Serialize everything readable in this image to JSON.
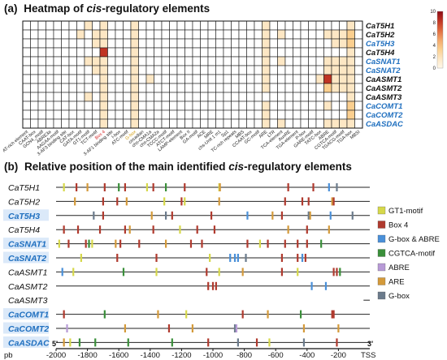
{
  "panel_a": {
    "label": "(a)",
    "title_pre": "Heatmap of ",
    "title_em": "cis",
    "title_post": "-regulatory elements",
    "genes": [
      "CaT5H1",
      "CaT5H2",
      "CaT5H3",
      "CaT5H4",
      "CaSNAT1",
      "CaSNAT2",
      "CaASMT1",
      "CaASMT2",
      "CaASMT3",
      "CaCOMT1",
      "CaCOMT2",
      "CaASDAC"
    ],
    "gene_colors": [
      "#111111",
      "#111111",
      "#1f6fbf",
      "#111111",
      "#1f6fbf",
      "#1f6fbf",
      "#111111",
      "#111111",
      "#111111",
      "#1f6fbf",
      "#1f6fbf",
      "#1f6fbf"
    ],
    "elements": [
      "AT-rich element",
      "CAAT-box",
      "GCN4_motif",
      "ABRE3a",
      "AAGAA-motif",
      "3-AF3 binding site",
      "CAT-box",
      "GATA-motif",
      "GT1-motif",
      "TCT-motif",
      "Box 4",
      "3-AF1 binding site",
      "I-box",
      "ATC-motif",
      "G-box",
      "circadian",
      "chs-CMA1a",
      "chs-CMA2a",
      "TCCC-motif",
      "ATCT-motif",
      "LAMP-element",
      "Box II",
      "GA-motif",
      "ACE",
      "MRE",
      "chs-Unit 1 m1",
      "Sp1",
      "TC-rich repeats",
      "MBS",
      "CCAAT-box",
      "GC-motif",
      "ARE",
      "LTR",
      "TCA-element",
      "AuxRE",
      "TGA-element",
      "P-box",
      "GARE-motif",
      "TATC-box",
      "ABRE",
      "CGTCA-motif",
      "TGACG-motif",
      "TGA-box",
      "MBSI"
    ],
    "highlight_elements": {
      "Box 4": "#d62728",
      "G-box": "#d4a017"
    },
    "colorbar": {
      "ticks": [
        0,
        2,
        4,
        6,
        8,
        10
      ],
      "colors": [
        "#fff7ea",
        "#fde7c4",
        "#fbcf8f",
        "#f3a66a",
        "#e06a3f",
        "#c03423",
        "#8b0a14"
      ]
    },
    "matrix": [
      [
        0,
        0,
        0,
        0,
        0,
        0,
        0,
        0,
        1,
        0,
        1,
        0,
        0,
        0,
        1,
        0,
        0,
        0,
        0,
        0,
        0,
        0,
        0,
        0,
        0,
        0,
        0,
        0,
        0,
        0,
        0,
        1,
        0,
        0,
        0,
        0,
        0,
        0,
        0,
        0,
        0,
        0,
        2,
        0
      ],
      [
        0,
        0,
        0,
        0,
        0,
        0,
        0,
        1,
        0,
        1,
        2,
        0,
        0,
        0,
        1,
        0,
        0,
        0,
        0,
        0,
        0,
        0,
        0,
        0,
        0,
        0,
        0,
        0,
        0,
        0,
        0,
        1,
        0,
        1,
        0,
        0,
        0,
        0,
        0,
        1,
        1,
        1,
        3,
        0
      ],
      [
        0,
        0,
        0,
        0,
        0,
        0,
        0,
        0,
        0,
        1,
        2,
        0,
        0,
        0,
        1,
        0,
        0,
        0,
        0,
        0,
        0,
        0,
        0,
        0,
        0,
        0,
        0,
        0,
        0,
        0,
        0,
        1,
        0,
        0,
        0,
        0,
        0,
        0,
        0,
        0,
        2,
        2,
        4,
        0
      ],
      [
        0,
        0,
        0,
        0,
        0,
        0,
        0,
        0,
        0,
        0,
        9,
        0,
        0,
        0,
        2,
        0,
        0,
        0,
        0,
        0,
        0,
        0,
        0,
        0,
        0,
        0,
        0,
        0,
        0,
        0,
        0,
        1,
        0,
        0,
        0,
        0,
        0,
        0,
        0,
        0,
        0,
        0,
        1,
        0
      ],
      [
        0,
        0,
        0,
        0,
        0,
        0,
        0,
        0,
        1,
        1,
        2,
        0,
        0,
        0,
        1,
        0,
        0,
        0,
        0,
        0,
        0,
        0,
        0,
        0,
        0,
        0,
        0,
        0,
        0,
        0,
        0,
        1,
        0,
        1,
        0,
        0,
        0,
        0,
        0,
        1,
        2,
        2,
        1,
        0
      ],
      [
        0,
        0,
        0,
        0,
        0,
        0,
        0,
        0,
        0,
        1,
        2,
        0,
        0,
        0,
        2,
        0,
        0,
        0,
        0,
        0,
        0,
        0,
        0,
        0,
        0,
        0,
        0,
        0,
        0,
        0,
        0,
        1,
        0,
        0,
        0,
        0,
        0,
        0,
        0,
        1,
        1,
        1,
        1,
        0
      ],
      [
        0,
        0,
        0,
        0,
        0,
        0,
        0,
        0,
        0,
        0,
        1,
        0,
        0,
        0,
        1,
        0,
        1,
        0,
        0,
        0,
        0,
        0,
        0,
        0,
        0,
        0,
        0,
        0,
        0,
        0,
        0,
        1,
        0,
        0,
        0,
        0,
        0,
        0,
        1,
        9,
        2,
        2,
        2,
        0
      ],
      [
        0,
        0,
        0,
        0,
        0,
        0,
        0,
        0,
        0,
        0,
        1,
        0,
        0,
        0,
        2,
        0,
        0,
        0,
        0,
        0,
        0,
        0,
        0,
        0,
        0,
        0,
        0,
        0,
        0,
        0,
        0,
        1,
        0,
        0,
        0,
        0,
        0,
        0,
        0,
        3,
        1,
        1,
        1,
        0
      ],
      [
        0,
        0,
        0,
        0,
        0,
        0,
        0,
        0,
        1,
        0,
        1,
        0,
        0,
        0,
        1,
        0,
        0,
        0,
        0,
        0,
        0,
        0,
        0,
        0,
        0,
        0,
        0,
        0,
        0,
        0,
        0,
        0,
        0,
        0,
        0,
        0,
        0,
        0,
        0,
        0,
        0,
        0,
        1,
        0
      ],
      [
        0,
        0,
        0,
        0,
        0,
        0,
        0,
        0,
        0,
        0,
        2,
        0,
        0,
        0,
        1,
        0,
        0,
        0,
        0,
        0,
        0,
        0,
        0,
        0,
        0,
        0,
        0,
        0,
        0,
        0,
        0,
        1,
        0,
        0,
        0,
        0,
        0,
        0,
        0,
        1,
        0,
        0,
        4,
        0
      ],
      [
        0,
        0,
        0,
        0,
        0,
        0,
        0,
        0,
        0,
        0,
        2,
        0,
        0,
        0,
        1,
        0,
        0,
        0,
        0,
        0,
        0,
        0,
        0,
        0,
        0,
        0,
        0,
        0,
        0,
        0,
        0,
        1,
        0,
        0,
        0,
        0,
        0,
        0,
        0,
        0,
        0,
        0,
        3,
        0
      ],
      [
        0,
        0,
        0,
        0,
        0,
        0,
        0,
        0,
        0,
        0,
        1,
        0,
        0,
        0,
        1,
        0,
        0,
        0,
        0,
        0,
        0,
        0,
        0,
        0,
        0,
        0,
        0,
        0,
        0,
        0,
        0,
        1,
        0,
        1,
        0,
        0,
        0,
        0,
        0,
        1,
        1,
        1,
        2,
        0
      ]
    ]
  },
  "panel_b": {
    "label": "(b)",
    "title_pre": "Relative position of the main identified ",
    "title_em": "cis",
    "title_post": "-regulatory elements",
    "genes": [
      "CaT5H1",
      "CaT5H2",
      "CaT5H3",
      "CaT5H4",
      "CaSNAT1",
      "CaSNAT2",
      "CaASMT1",
      "CaASMT2",
      "CaASMT3",
      "CaCOMT1",
      "CaCOMT2",
      "CaASDAC"
    ],
    "gene_colors": [
      "#111111",
      "#111111",
      "#1f6fbf",
      "#111111",
      "#1f6fbf",
      "#1f6fbf",
      "#111111",
      "#111111",
      "#111111",
      "#1f6fbf",
      "#1f6fbf",
      "#1f6fbf"
    ],
    "gene_bg": [
      "#ffffff",
      "#ffffff",
      "#dbe9f9",
      "#ffffff",
      "#dbe9f9",
      "#dbe9f9",
      "#ffffff",
      "#ffffff",
      "#ffffff",
      "#dbe9f9",
      "#dbe9f9",
      "#dbe9f9"
    ],
    "strand_5": "5'",
    "strand_3": "3'",
    "axis_unit": "pb",
    "x_ticks": [
      -2000,
      -1800,
      -1600,
      -1400,
      -1200,
      -1000,
      -800,
      -600,
      -400,
      -200
    ],
    "tss_label": "TSS",
    "x_range": [
      -2000,
      0
    ],
    "legend": [
      {
        "name": "GT1-motif",
        "color": "#d6d84a"
      },
      {
        "name": "Box 4",
        "color": "#b03a2e"
      },
      {
        "name": "G-box & ABRE",
        "color": "#4a90d9"
      },
      {
        "name": "CGTCA-motif",
        "color": "#3a8f3a"
      },
      {
        "name": "ABRE",
        "color": "#b79ad6"
      },
      {
        "name": "ARE",
        "color": "#d49a3a"
      },
      {
        "name": "G-box",
        "color": "#6b7b8c"
      }
    ],
    "tracks": [
      {
        "length": 2000,
        "marks": [
          [
            -1950,
            0
          ],
          [
            -1870,
            1
          ],
          [
            -1800,
            5
          ],
          [
            -1690,
            1
          ],
          [
            -1600,
            3
          ],
          [
            -1560,
            1
          ],
          [
            -1420,
            0
          ],
          [
            -1380,
            1
          ],
          [
            -1300,
            3
          ],
          [
            -1180,
            1
          ],
          [
            -960,
            0
          ],
          [
            -955,
            5
          ],
          [
            -520,
            1
          ],
          [
            -360,
            1
          ],
          [
            -260,
            2
          ],
          [
            -210,
            6
          ]
        ]
      },
      {
        "length": 2000,
        "marks": [
          [
            -1880,
            5
          ],
          [
            -1700,
            1
          ],
          [
            -1610,
            1
          ],
          [
            -1550,
            5
          ],
          [
            -1310,
            0
          ],
          [
            -1200,
            1
          ],
          [
            -1180,
            0
          ],
          [
            -960,
            5
          ],
          [
            -540,
            1
          ],
          [
            -430,
            1
          ],
          [
            -390,
            1
          ],
          [
            -240,
            5
          ],
          [
            -230,
            1
          ]
        ]
      },
      {
        "length": 2000,
        "marks": [
          [
            -1760,
            6
          ],
          [
            -1700,
            1
          ],
          [
            -1390,
            5
          ],
          [
            -1300,
            6
          ],
          [
            -1260,
            1
          ],
          [
            -1010,
            1
          ],
          [
            -780,
            2
          ],
          [
            -620,
            5
          ],
          [
            -560,
            1
          ],
          [
            -390,
            6
          ],
          [
            -380,
            5
          ],
          [
            -250,
            2
          ],
          [
            -110,
            6
          ]
        ]
      },
      {
        "length": 2000,
        "marks": [
          [
            -1950,
            1
          ],
          [
            -1860,
            1
          ],
          [
            -1720,
            1
          ],
          [
            -1560,
            1
          ],
          [
            -1530,
            5
          ],
          [
            -1380,
            1
          ],
          [
            -1210,
            0
          ],
          [
            -1100,
            1
          ],
          [
            -990,
            1
          ],
          [
            -520,
            5
          ],
          [
            -400,
            1
          ],
          [
            -260,
            5
          ]
        ]
      },
      {
        "length": 2000,
        "marks": [
          [
            -1980,
            0
          ],
          [
            -1920,
            1
          ],
          [
            -1810,
            1
          ],
          [
            -1790,
            3
          ],
          [
            -1770,
            0
          ],
          [
            -1620,
            5
          ],
          [
            -1590,
            1
          ],
          [
            -1470,
            1
          ],
          [
            -1300,
            5
          ],
          [
            -1140,
            1
          ],
          [
            -1070,
            1
          ],
          [
            -780,
            1
          ],
          [
            -700,
            0
          ],
          [
            -650,
            1
          ],
          [
            -540,
            1
          ],
          [
            -460,
            1
          ],
          [
            -400,
            1
          ],
          [
            -310,
            3
          ]
        ]
      },
      {
        "length": 2000,
        "marks": [
          [
            -1840,
            0
          ],
          [
            -1610,
            1
          ],
          [
            -1360,
            1
          ],
          [
            -1020,
            0
          ],
          [
            -890,
            2
          ],
          [
            -860,
            2
          ],
          [
            -840,
            2
          ],
          [
            -790,
            6
          ],
          [
            -560,
            1
          ],
          [
            -460,
            1
          ],
          [
            -430,
            2
          ],
          [
            -410,
            1
          ]
        ]
      },
      {
        "length": 2000,
        "marks": [
          [
            -1960,
            2
          ],
          [
            -1890,
            0
          ],
          [
            -1570,
            3
          ],
          [
            -1360,
            0
          ],
          [
            -1040,
            1
          ],
          [
            -960,
            0
          ],
          [
            -810,
            5
          ],
          [
            -560,
            1
          ],
          [
            -460,
            0
          ],
          [
            -230,
            1
          ],
          [
            -210,
            1
          ],
          [
            -190,
            3
          ]
        ]
      },
      {
        "length": 2000,
        "marks": [
          [
            -1030,
            1
          ],
          [
            -1000,
            1
          ],
          [
            -980,
            1
          ],
          [
            -370,
            2
          ],
          [
            -280,
            2
          ]
        ]
      },
      {
        "length": 40,
        "marks": []
      },
      {
        "length": 2000,
        "marks": [
          [
            -1950,
            1
          ],
          [
            -1690,
            3
          ],
          [
            -1350,
            5
          ],
          [
            -1170,
            0
          ],
          [
            -810,
            1
          ],
          [
            -650,
            5
          ],
          [
            -440,
            3
          ],
          [
            -240,
            1
          ],
          [
            -230,
            1
          ]
        ]
      },
      {
        "length": 2000,
        "marks": [
          [
            -1930,
            4
          ],
          [
            -1560,
            5
          ],
          [
            -1280,
            1
          ],
          [
            -1130,
            5
          ],
          [
            -860,
            6
          ],
          [
            -850,
            4
          ],
          [
            -420,
            5
          ],
          [
            -200,
            5
          ]
        ]
      },
      {
        "length": 2000,
        "marks": [
          [
            -1950,
            5
          ],
          [
            -1910,
            0
          ],
          [
            -1850,
            3
          ],
          [
            -1750,
            3
          ],
          [
            -1540,
            3
          ],
          [
            -1260,
            3
          ],
          [
            -1030,
            1
          ],
          [
            -840,
            6
          ],
          [
            -720,
            1
          ],
          [
            -640,
            0
          ],
          [
            -420,
            6
          ],
          [
            -210,
            1
          ]
        ]
      }
    ]
  }
}
